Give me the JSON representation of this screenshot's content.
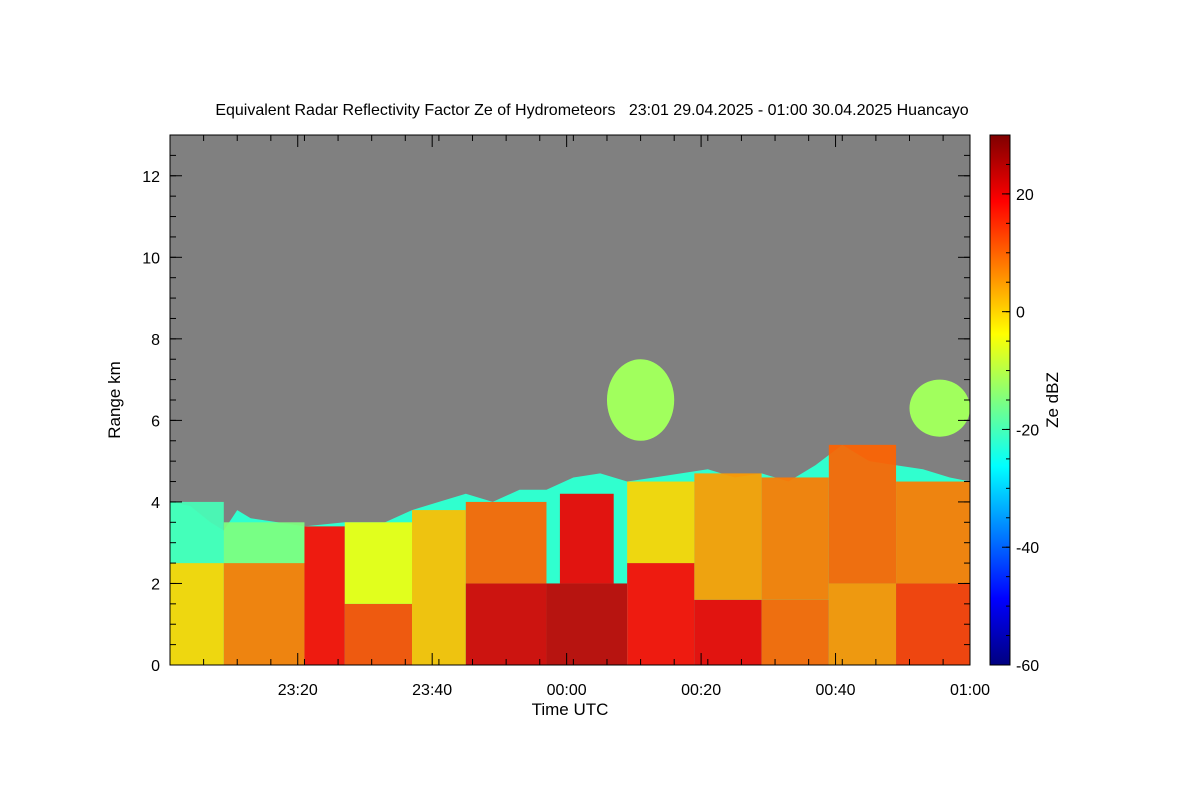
{
  "chart_data": {
    "type": "heatmap",
    "title": "Equivalent Radar Reflectivity Factor Ze of Hydrometeors   23:01 29.04.2025 - 01:00 30.04.2025 Huancayo",
    "xlabel": "Time UTC",
    "ylabel": "Range km",
    "x_range": [
      "23:01",
      "01:00"
    ],
    "x_ticks": [
      "23:20",
      "23:40",
      "00:00",
      "00:20",
      "00:40",
      "01:00"
    ],
    "x_tick_minutes": [
      19,
      39,
      59,
      79,
      99,
      119
    ],
    "x_span_minutes": 119,
    "ylim": [
      0,
      13
    ],
    "y_ticks": [
      0,
      2,
      4,
      6,
      8,
      10,
      12
    ],
    "colorbar": {
      "label": "Ze dBZ",
      "range": [
        -60,
        30
      ],
      "ticks": [
        -60,
        -40,
        -20,
        0,
        20
      ],
      "colormap": "jet",
      "colors": [
        "#00007f",
        "#0000ff",
        "#007fff",
        "#00ffff",
        "#7fff7f",
        "#ffff00",
        "#ff7f00",
        "#ff0000",
        "#7f0000"
      ]
    },
    "no_signal_color": "#808080",
    "echo_top_km": [
      [
        0,
        4.0
      ],
      [
        3,
        3.9
      ],
      [
        6,
        3.5
      ],
      [
        8,
        3.3
      ],
      [
        10,
        3.8
      ],
      [
        12,
        3.6
      ],
      [
        16,
        3.5
      ],
      [
        20,
        3.4
      ],
      [
        26,
        3.5
      ],
      [
        32,
        3.5
      ],
      [
        36,
        3.8
      ],
      [
        40,
        4.0
      ],
      [
        44,
        4.2
      ],
      [
        48,
        4.0
      ],
      [
        52,
        4.3
      ],
      [
        56,
        4.3
      ],
      [
        60,
        4.6
      ],
      [
        64,
        4.7
      ],
      [
        68,
        4.5
      ],
      [
        72,
        4.6
      ],
      [
        76,
        4.7
      ],
      [
        80,
        4.8
      ],
      [
        84,
        4.6
      ],
      [
        88,
        4.7
      ],
      [
        92,
        4.5
      ],
      [
        96,
        4.9
      ],
      [
        100,
        5.4
      ],
      [
        104,
        5.0
      ],
      [
        108,
        4.9
      ],
      [
        112,
        4.8
      ],
      [
        116,
        4.6
      ],
      [
        119,
        4.5
      ]
    ],
    "elevated_layers": [
      {
        "t_start": 65,
        "t_end": 75,
        "base_km": 5.5,
        "top_km": 7.5
      },
      {
        "t_start": 110,
        "t_end": 119,
        "base_km": 5.6,
        "top_km": 7.0
      }
    ],
    "reflectivity_dbz": [
      {
        "t_start": 0,
        "t_end": 8,
        "base_km": 0,
        "top_km": 2.5,
        "dbz": 0
      },
      {
        "t_start": 0,
        "t_end": 8,
        "base_km": 2.5,
        "top_km": 4.0,
        "dbz": -20
      },
      {
        "t_start": 8,
        "t_end": 20,
        "base_km": 0,
        "top_km": 2.5,
        "dbz": 8
      },
      {
        "t_start": 8,
        "t_end": 20,
        "base_km": 2.5,
        "top_km": 3.5,
        "dbz": -15
      },
      {
        "t_start": 20,
        "t_end": 26,
        "base_km": 0,
        "top_km": 3.4,
        "dbz": 18
      },
      {
        "t_start": 26,
        "t_end": 36,
        "base_km": 0,
        "top_km": 1.5,
        "dbz": 12
      },
      {
        "t_start": 26,
        "t_end": 36,
        "base_km": 1.5,
        "top_km": 3.5,
        "dbz": -5
      },
      {
        "t_start": 36,
        "t_end": 44,
        "base_km": 0,
        "top_km": 3.8,
        "dbz": 2
      },
      {
        "t_start": 44,
        "t_end": 56,
        "base_km": 0,
        "top_km": 2.0,
        "dbz": 22
      },
      {
        "t_start": 44,
        "t_end": 56,
        "base_km": 2.0,
        "top_km": 4.0,
        "dbz": 10
      },
      {
        "t_start": 56,
        "t_end": 68,
        "base_km": 0,
        "top_km": 2.0,
        "dbz": 24
      },
      {
        "t_start": 58,
        "t_end": 66,
        "base_km": 2.0,
        "top_km": 4.2,
        "dbz": 20
      },
      {
        "t_start": 68,
        "t_end": 78,
        "base_km": 0,
        "top_km": 2.5,
        "dbz": 18
      },
      {
        "t_start": 68,
        "t_end": 78,
        "base_km": 2.5,
        "top_km": 4.5,
        "dbz": 0
      },
      {
        "t_start": 78,
        "t_end": 88,
        "base_km": 0,
        "top_km": 1.6,
        "dbz": 20
      },
      {
        "t_start": 78,
        "t_end": 88,
        "base_km": 1.6,
        "top_km": 4.7,
        "dbz": 5
      },
      {
        "t_start": 88,
        "t_end": 98,
        "base_km": 0,
        "top_km": 1.6,
        "dbz": 10
      },
      {
        "t_start": 88,
        "t_end": 98,
        "base_km": 1.6,
        "top_km": 4.6,
        "dbz": 8
      },
      {
        "t_start": 98,
        "t_end": 108,
        "base_km": 0,
        "top_km": 2.0,
        "dbz": 6
      },
      {
        "t_start": 98,
        "t_end": 108,
        "base_km": 2.0,
        "top_km": 5.4,
        "dbz": 10
      },
      {
        "t_start": 108,
        "t_end": 119,
        "base_km": 0,
        "top_km": 2.0,
        "dbz": 14
      },
      {
        "t_start": 108,
        "t_end": 119,
        "base_km": 2.0,
        "top_km": 4.5,
        "dbz": 8
      }
    ],
    "grid": false,
    "legend": "colorbar right"
  }
}
